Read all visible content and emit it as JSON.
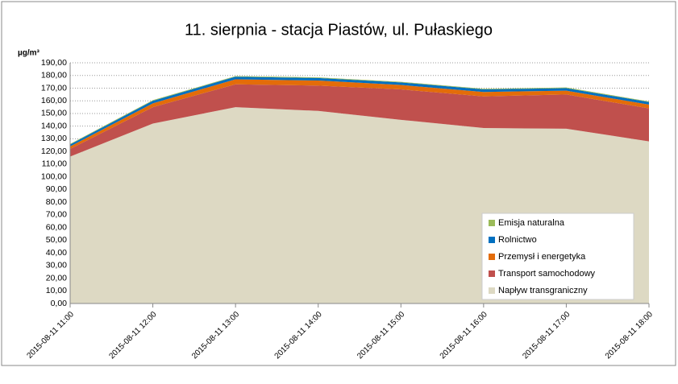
{
  "chart_data": {
    "type": "stacked_area",
    "title": "11. sierpnia - stacja Piastów, ul. Pułaskiego",
    "ylabel": "µg/m³",
    "categories": [
      "2015-08-11 11:00",
      "2015-08-11 12:00",
      "2015-08-11 13:00",
      "2015-08-11 14:00",
      "2015-08-11 15:00",
      "2015-08-11 16:00",
      "2015-08-11 17:00",
      "2015-08-11 18:00"
    ],
    "series": [
      {
        "name": "Napływ transgraniczny",
        "color": "#ddd9c3",
        "values": [
          116,
          142,
          155,
          152,
          145,
          138.5,
          138,
          128
        ]
      },
      {
        "name": "Transport samochodowy",
        "color": "#c0504d",
        "values": [
          6,
          13,
          18,
          20,
          24,
          25,
          27,
          26
        ]
      },
      {
        "name": "Przemysł i energetyka",
        "color": "#e36c09",
        "values": [
          2,
          3,
          4,
          4,
          3.5,
          3.5,
          3,
          3
        ]
      },
      {
        "name": "Rolnictwo",
        "color": "#0070c0",
        "values": [
          1.5,
          2,
          2,
          2,
          2,
          2,
          2,
          2
        ]
      },
      {
        "name": "Emisja naturalna",
        "color": "#9bbb59",
        "values": [
          0.5,
          0.5,
          0.5,
          0.5,
          0.5,
          0.5,
          0.5,
          0.5
        ]
      }
    ],
    "ylim": [
      0,
      190
    ],
    "yticks": [
      {
        "value": 0,
        "label": "0,00"
      },
      {
        "value": 10,
        "label": "10,00"
      },
      {
        "value": 20,
        "label": "20,00"
      },
      {
        "value": 30,
        "label": "30,00"
      },
      {
        "value": 40,
        "label": "40,00"
      },
      {
        "value": 50,
        "label": "50,00"
      },
      {
        "value": 60,
        "label": "60,00"
      },
      {
        "value": 70,
        "label": "70,00"
      },
      {
        "value": 80,
        "label": "80,00"
      },
      {
        "value": 90,
        "label": "90,00"
      },
      {
        "value": 100,
        "label": "100,00"
      },
      {
        "value": 110,
        "label": "110,00"
      },
      {
        "value": 120,
        "label": "120,00"
      },
      {
        "value": 130,
        "label": "130,00"
      },
      {
        "value": 140,
        "label": "140,00"
      },
      {
        "value": 150,
        "label": "150,00"
      },
      {
        "value": 160,
        "label": "160,00"
      },
      {
        "value": 170,
        "label": "170,00"
      },
      {
        "value": 180,
        "label": "180,00"
      },
      {
        "value": 190,
        "label": "190,00"
      }
    ],
    "grid": true,
    "legend": "lower right"
  }
}
